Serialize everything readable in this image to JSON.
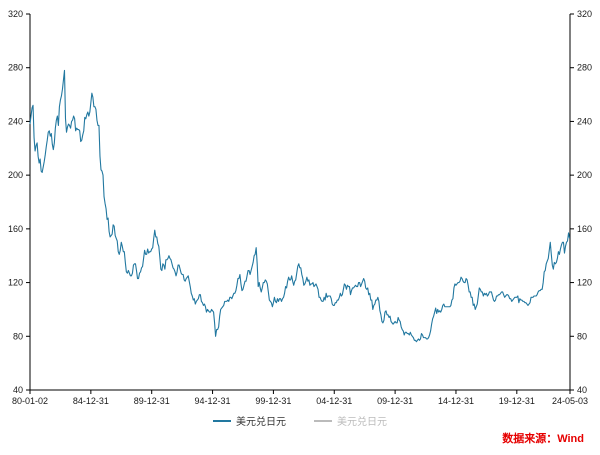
{
  "chart_data": {
    "type": "line",
    "title": "",
    "xlabel": "",
    "ylabel": "",
    "grid": false,
    "legend_position": "bottom-center",
    "ylim": [
      40,
      320
    ],
    "xlim": [
      1980.0,
      2024.37
    ],
    "yticks": [
      40,
      80,
      120,
      160,
      200,
      240,
      280,
      320
    ],
    "xticks": [
      {
        "t": 1980.0,
        "label": "80-01-02"
      },
      {
        "t": 1985.0,
        "label": "84-12-31"
      },
      {
        "t": 1990.0,
        "label": "89-12-31"
      },
      {
        "t": 1995.0,
        "label": "94-12-31"
      },
      {
        "t": 2000.0,
        "label": "99-12-31"
      },
      {
        "t": 2005.0,
        "label": "04-12-31"
      },
      {
        "t": 2010.0,
        "label": "09-12-31"
      },
      {
        "t": 2015.0,
        "label": "14-12-31"
      },
      {
        "t": 2020.0,
        "label": "19-12-31"
      },
      {
        "t": 2024.37,
        "label": "24-05-03"
      }
    ],
    "axis_color": "#000000",
    "legend": [
      {
        "label": "美元兑日元",
        "color": "#2278a0",
        "text_color": "#333333"
      },
      {
        "label": "美元兑日元",
        "color": "#bbbbbb",
        "text_color": "#bbbbbb"
      }
    ],
    "series_start_year": 1980.0,
    "series_step_months": 1,
    "series": [
      {
        "name": "美元兑日元",
        "color": "#2278a0",
        "values": [
          238,
          244,
          250,
          252,
          228,
          218,
          222,
          224,
          214,
          209,
          212,
          203,
          202,
          206,
          210,
          215,
          221,
          226,
          232,
          233,
          229,
          231,
          223,
          219,
          224,
          235,
          241,
          244,
          237,
          251,
          256,
          259,
          264,
          271,
          278,
          242,
          232,
          236,
          238,
          237,
          235,
          240,
          241,
          244,
          242,
          233,
          235,
          234,
          234,
          233,
          225,
          226,
          230,
          233,
          243,
          242,
          245,
          247,
          244,
          247,
          254,
          261,
          258,
          251,
          251,
          249,
          241,
          237,
          237,
          214,
          204,
          203,
          200,
          184,
          179,
          175,
          167,
          168,
          158,
          154,
          155,
          156,
          163,
          162,
          155,
          153,
          151,
          143,
          141,
          144,
          150,
          147,
          143,
          143,
          135,
          128,
          127,
          129,
          127,
          125,
          125,
          127,
          133,
          134,
          134,
          129,
          123,
          123,
          127,
          128,
          131,
          132,
          138,
          144,
          141,
          141,
          145,
          142,
          143,
          143,
          145,
          146,
          153,
          159,
          154,
          154,
          149,
          147,
          139,
          130,
          129,
          134,
          133,
          130,
          137,
          137,
          138,
          140,
          138,
          137,
          134,
          131,
          130,
          128,
          125,
          128,
          133,
          133,
          130,
          127,
          126,
          126,
          122,
          121,
          123,
          124,
          125,
          121,
          117,
          112,
          110,
          107,
          108,
          104,
          106,
          107,
          108,
          111,
          111,
          106,
          105,
          103,
          104,
          102,
          98,
          100,
          99,
          98,
          98,
          100,
          99,
          98,
          90,
          80,
          85,
          85,
          87,
          95,
          100,
          101,
          102,
          103,
          106,
          106,
          106,
          107,
          106,
          109,
          109,
          108,
          110,
          112,
          112,
          114,
          118,
          123,
          123,
          126,
          119,
          114,
          115,
          118,
          121,
          121,
          125,
          129,
          129,
          126,
          129,
          132,
          135,
          140,
          141,
          146,
          134,
          117,
          120,
          116,
          113,
          116,
          120,
          120,
          122,
          121,
          119,
          113,
          107,
          106,
          105,
          102,
          105,
          109,
          106,
          105,
          108,
          106,
          108,
          108,
          106,
          108,
          109,
          112,
          117,
          116,
          121,
          124,
          122,
          122,
          125,
          121,
          118,
          121,
          122,
          127,
          132,
          134,
          131,
          131,
          126,
          123,
          118,
          119,
          121,
          124,
          121,
          122,
          118,
          119,
          119,
          120,
          117,
          118,
          119,
          117,
          115,
          109,
          109,
          107,
          106,
          106,
          109,
          107,
          112,
          109,
          110,
          110,
          110,
          108,
          104,
          103,
          103,
          105,
          105,
          107,
          107,
          109,
          112,
          110,
          111,
          115,
          119,
          118,
          115,
          118,
          117,
          117,
          111,
          114,
          116,
          116,
          117,
          118,
          117,
          117,
          120,
          120,
          117,
          119,
          121,
          123,
          121,
          116,
          115,
          116,
          111,
          112,
          107,
          107,
          100,
          103,
          104,
          107,
          107,
          109,
          106,
          99,
          96,
          91,
          90,
          92,
          98,
          99,
          96,
          96,
          94,
          95,
          91,
          90,
          89,
          90,
          91,
          90,
          90,
          94,
          92,
          91,
          87,
          85,
          84,
          81,
          83,
          83,
          82,
          82,
          81,
          83,
          81,
          80,
          79,
          77,
          77,
          76,
          77,
          78,
          77,
          78,
          82,
          81,
          79,
          79,
          79,
          78,
          78,
          79,
          81,
          84,
          89,
          93,
          95,
          98,
          101,
          97,
          100,
          98,
          99,
          98,
          100,
          103,
          104,
          102,
          102,
          102,
          102,
          102,
          102,
          103,
          107,
          108,
          116,
          119,
          118,
          119,
          120,
          120,
          121,
          124,
          123,
          121,
          120,
          120,
          123,
          122,
          118,
          113,
          113,
          109,
          109,
          103,
          104,
          100,
          102,
          104,
          110,
          116,
          115,
          113,
          113,
          110,
          112,
          111,
          112,
          110,
          111,
          113,
          113,
          113,
          110,
          107,
          106,
          107,
          110,
          110,
          111,
          111,
          112,
          113,
          113,
          111,
          109,
          110,
          111,
          111,
          110,
          108,
          108,
          106,
          107,
          108,
          109,
          109,
          109,
          110,
          105,
          108,
          107,
          107,
          106,
          106,
          105,
          105,
          104,
          103,
          104,
          105,
          109,
          109,
          109,
          110,
          110,
          110,
          111,
          113,
          114,
          114,
          115,
          115,
          120,
          128,
          129,
          134,
          136,
          138,
          144,
          150,
          141,
          133,
          130,
          135,
          134,
          135,
          138,
          143,
          141,
          145,
          148,
          150,
          150,
          142,
          147,
          150,
          151,
          157,
          153
        ]
      }
    ]
  },
  "source": {
    "text": "数据来源：Wind",
    "color": "#e60000"
  }
}
